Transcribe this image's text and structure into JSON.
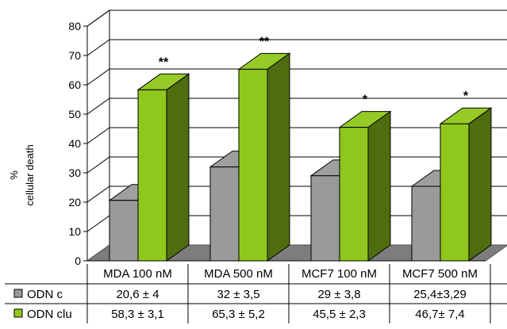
{
  "chart_data": {
    "type": "bar",
    "ylabel_line1": "%",
    "ylabel_line2": "cellular death",
    "ylim": [
      0,
      80
    ],
    "yticks": [
      0,
      10,
      20,
      30,
      40,
      50,
      60,
      70,
      80
    ],
    "grid": true,
    "categories": [
      "MDA 100 nM",
      "MDA 500 nM",
      "MCF7 100 nM",
      "MCF7 500 nM"
    ],
    "series": [
      {
        "name": "ODN c",
        "color": "#9a9a9a",
        "values": [
          20.6,
          32,
          29,
          25.4
        ],
        "labels": [
          "20,6 ± 4",
          "32   ± 3,5",
          "29   ± 3,8",
          "25,4±3,29"
        ]
      },
      {
        "name": "ODN clu",
        "color": "#8fc71c",
        "values": [
          58.3,
          65.3,
          45.5,
          46.7
        ],
        "labels": [
          "58,3 ± 3,1",
          "65,3 ± 5,2",
          "45,5 ± 2,3",
          "46,7± 7,4"
        ]
      }
    ],
    "significance": [
      "**",
      "**",
      "*",
      "*"
    ]
  }
}
